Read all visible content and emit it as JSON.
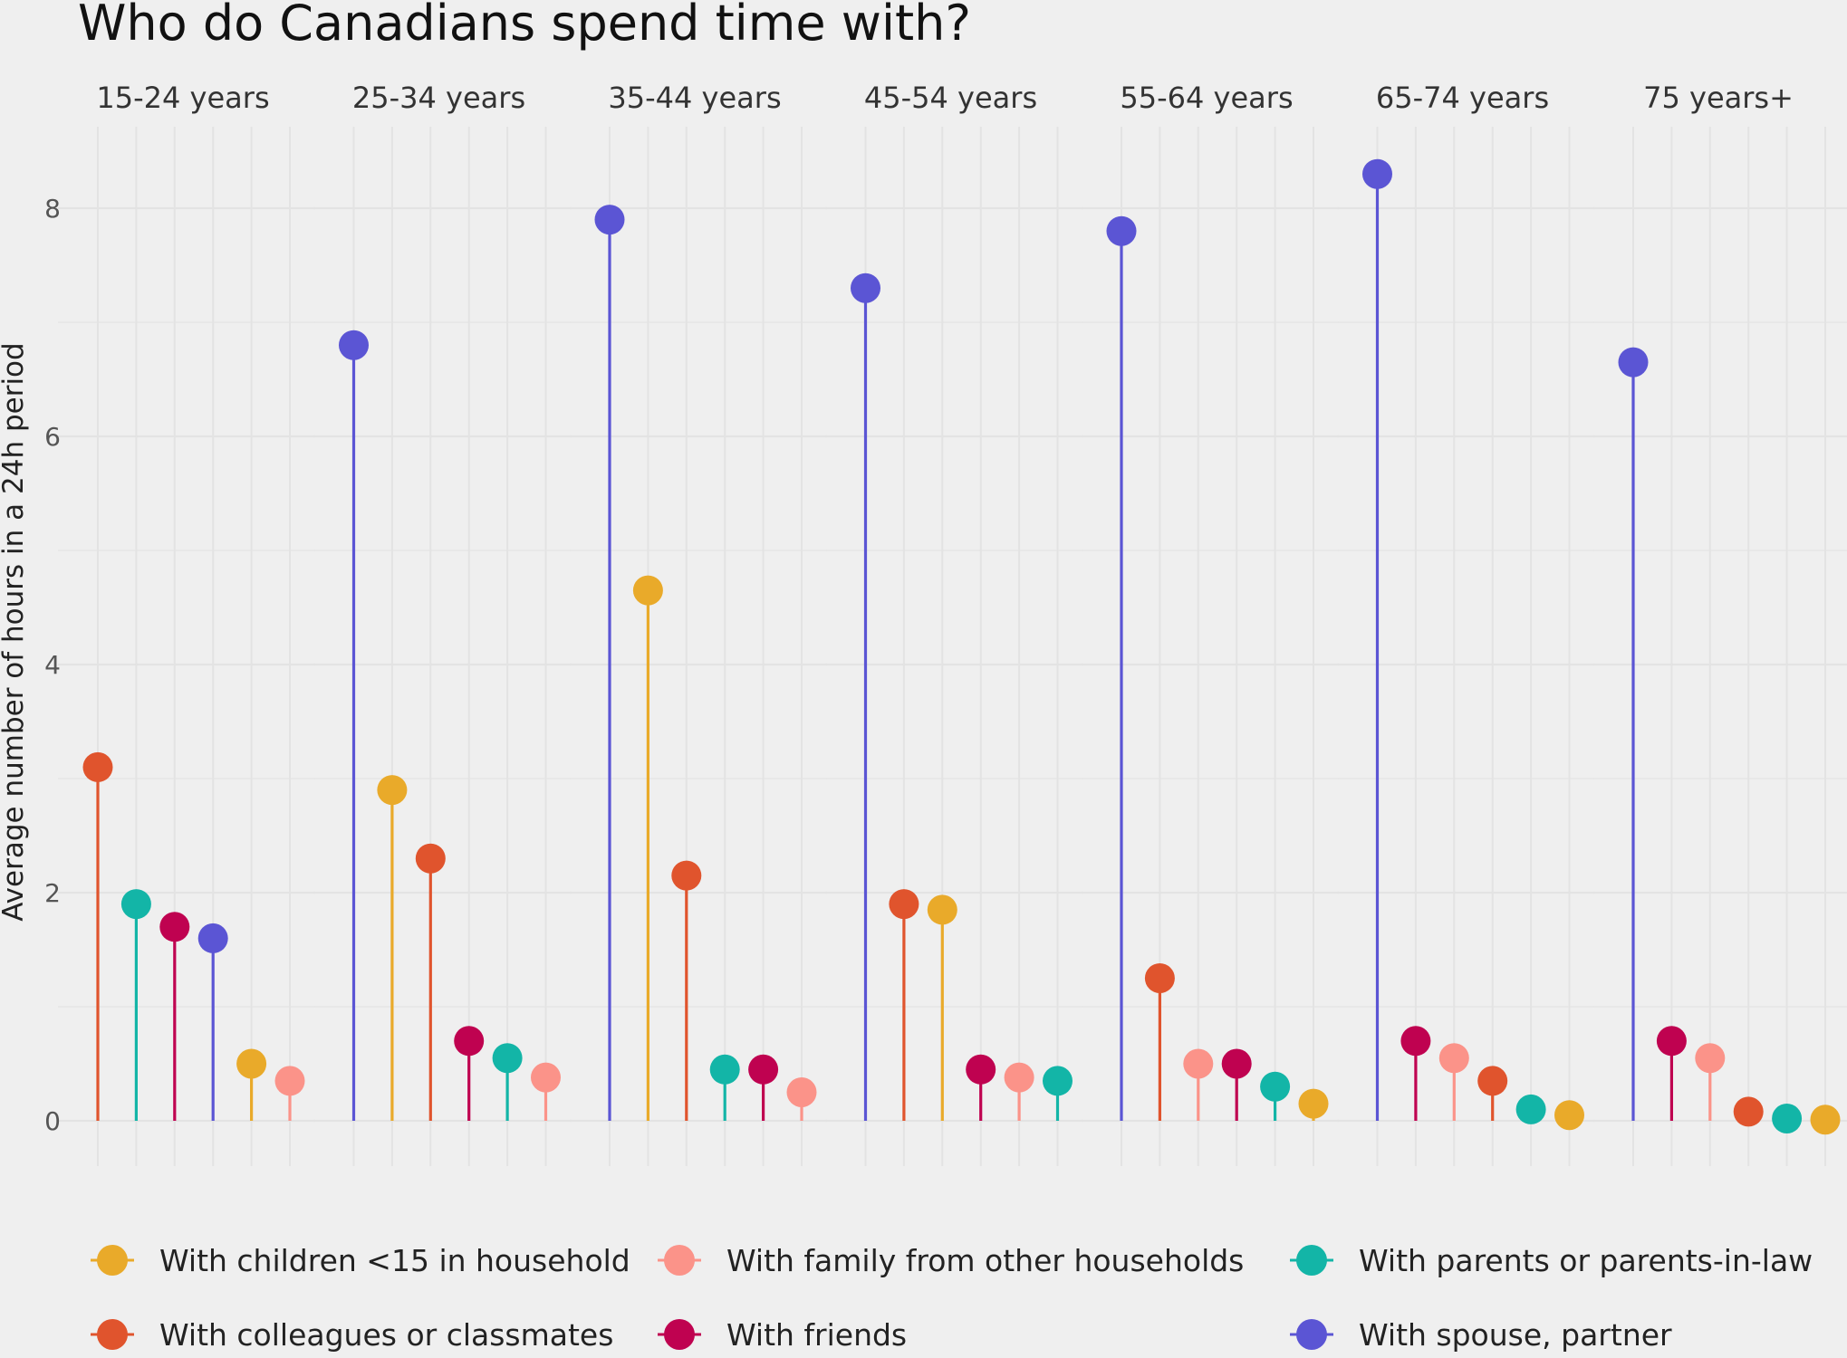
{
  "chart_data": {
    "type": "lollipop",
    "title": "Who do Canadians spend time with?",
    "ylabel": "Average number of hours in a 24h period",
    "xlabel": "",
    "ylim": [
      0,
      8.5
    ],
    "yticks": [
      0,
      2,
      4,
      6,
      8
    ],
    "legend_position": "bottom",
    "categories": [
      "With children <15 in household",
      "With family from other households",
      "With parents or parents-in-law",
      "With colleagues or classmates",
      "With friends",
      "With spouse, partner"
    ],
    "colors": {
      "With children <15 in household": "#E9AA2A",
      "With family from other households": "#FB9389",
      "With parents or parents-in-law": "#13B5A7",
      "With colleagues or classmates": "#E0542D",
      "With friends": "#BF0250",
      "With spouse, partner": "#5B55D4"
    },
    "facets": [
      {
        "label": "15-24 years",
        "points": [
          {
            "series": "With colleagues or classmates",
            "value": 3.1
          },
          {
            "series": "With parents or parents-in-law",
            "value": 1.9
          },
          {
            "series": "With friends",
            "value": 1.7
          },
          {
            "series": "With spouse, partner",
            "value": 1.6
          },
          {
            "series": "With children <15 in household",
            "value": 0.5
          },
          {
            "series": "With family from other households",
            "value": 0.35
          }
        ]
      },
      {
        "label": "25-34 years",
        "points": [
          {
            "series": "With spouse, partner",
            "value": 6.8
          },
          {
            "series": "With children <15 in household",
            "value": 2.9
          },
          {
            "series": "With colleagues or classmates",
            "value": 2.3
          },
          {
            "series": "With friends",
            "value": 0.7
          },
          {
            "series": "With parents or parents-in-law",
            "value": 0.55
          },
          {
            "series": "With family from other households",
            "value": 0.38
          }
        ]
      },
      {
        "label": "35-44 years",
        "points": [
          {
            "series": "With spouse, partner",
            "value": 7.9
          },
          {
            "series": "With children <15 in household",
            "value": 4.65
          },
          {
            "series": "With colleagues or classmates",
            "value": 2.15
          },
          {
            "series": "With parents or parents-in-law",
            "value": 0.45
          },
          {
            "series": "With friends",
            "value": 0.45
          },
          {
            "series": "With family from other households",
            "value": 0.25
          }
        ]
      },
      {
        "label": "45-54 years",
        "points": [
          {
            "series": "With spouse, partner",
            "value": 7.3
          },
          {
            "series": "With colleagues or classmates",
            "value": 1.9
          },
          {
            "series": "With children <15 in household",
            "value": 1.85
          },
          {
            "series": "With friends",
            "value": 0.45
          },
          {
            "series": "With family from other households",
            "value": 0.38
          },
          {
            "series": "With parents or parents-in-law",
            "value": 0.35
          }
        ]
      },
      {
        "label": "55-64 years",
        "points": [
          {
            "series": "With spouse, partner",
            "value": 7.8
          },
          {
            "series": "With colleagues or classmates",
            "value": 1.25
          },
          {
            "series": "With family from other households",
            "value": 0.5
          },
          {
            "series": "With friends",
            "value": 0.5
          },
          {
            "series": "With parents or parents-in-law",
            "value": 0.3
          },
          {
            "series": "With children <15 in household",
            "value": 0.15
          }
        ]
      },
      {
        "label": "65-74 years",
        "points": [
          {
            "series": "With spouse, partner",
            "value": 8.3
          },
          {
            "series": "With friends",
            "value": 0.7
          },
          {
            "series": "With family from other households",
            "value": 0.55
          },
          {
            "series": "With colleagues or classmates",
            "value": 0.35
          },
          {
            "series": "With parents or parents-in-law",
            "value": 0.1
          },
          {
            "series": "With children <15 in household",
            "value": 0.05
          }
        ]
      },
      {
        "label": "75 years+",
        "points": [
          {
            "series": "With spouse, partner",
            "value": 6.65
          },
          {
            "series": "With friends",
            "value": 0.7
          },
          {
            "series": "With family from other households",
            "value": 0.55
          },
          {
            "series": "With colleagues or classmates",
            "value": 0.08
          },
          {
            "series": "With parents or parents-in-law",
            "value": 0.02
          },
          {
            "series": "With children <15 in household",
            "value": 0.01
          }
        ]
      }
    ],
    "legend": [
      "With children <15 in household",
      "With family from other households",
      "With parents or parents-in-law",
      "With colleagues or classmates",
      "With friends",
      "With spouse, partner"
    ]
  }
}
